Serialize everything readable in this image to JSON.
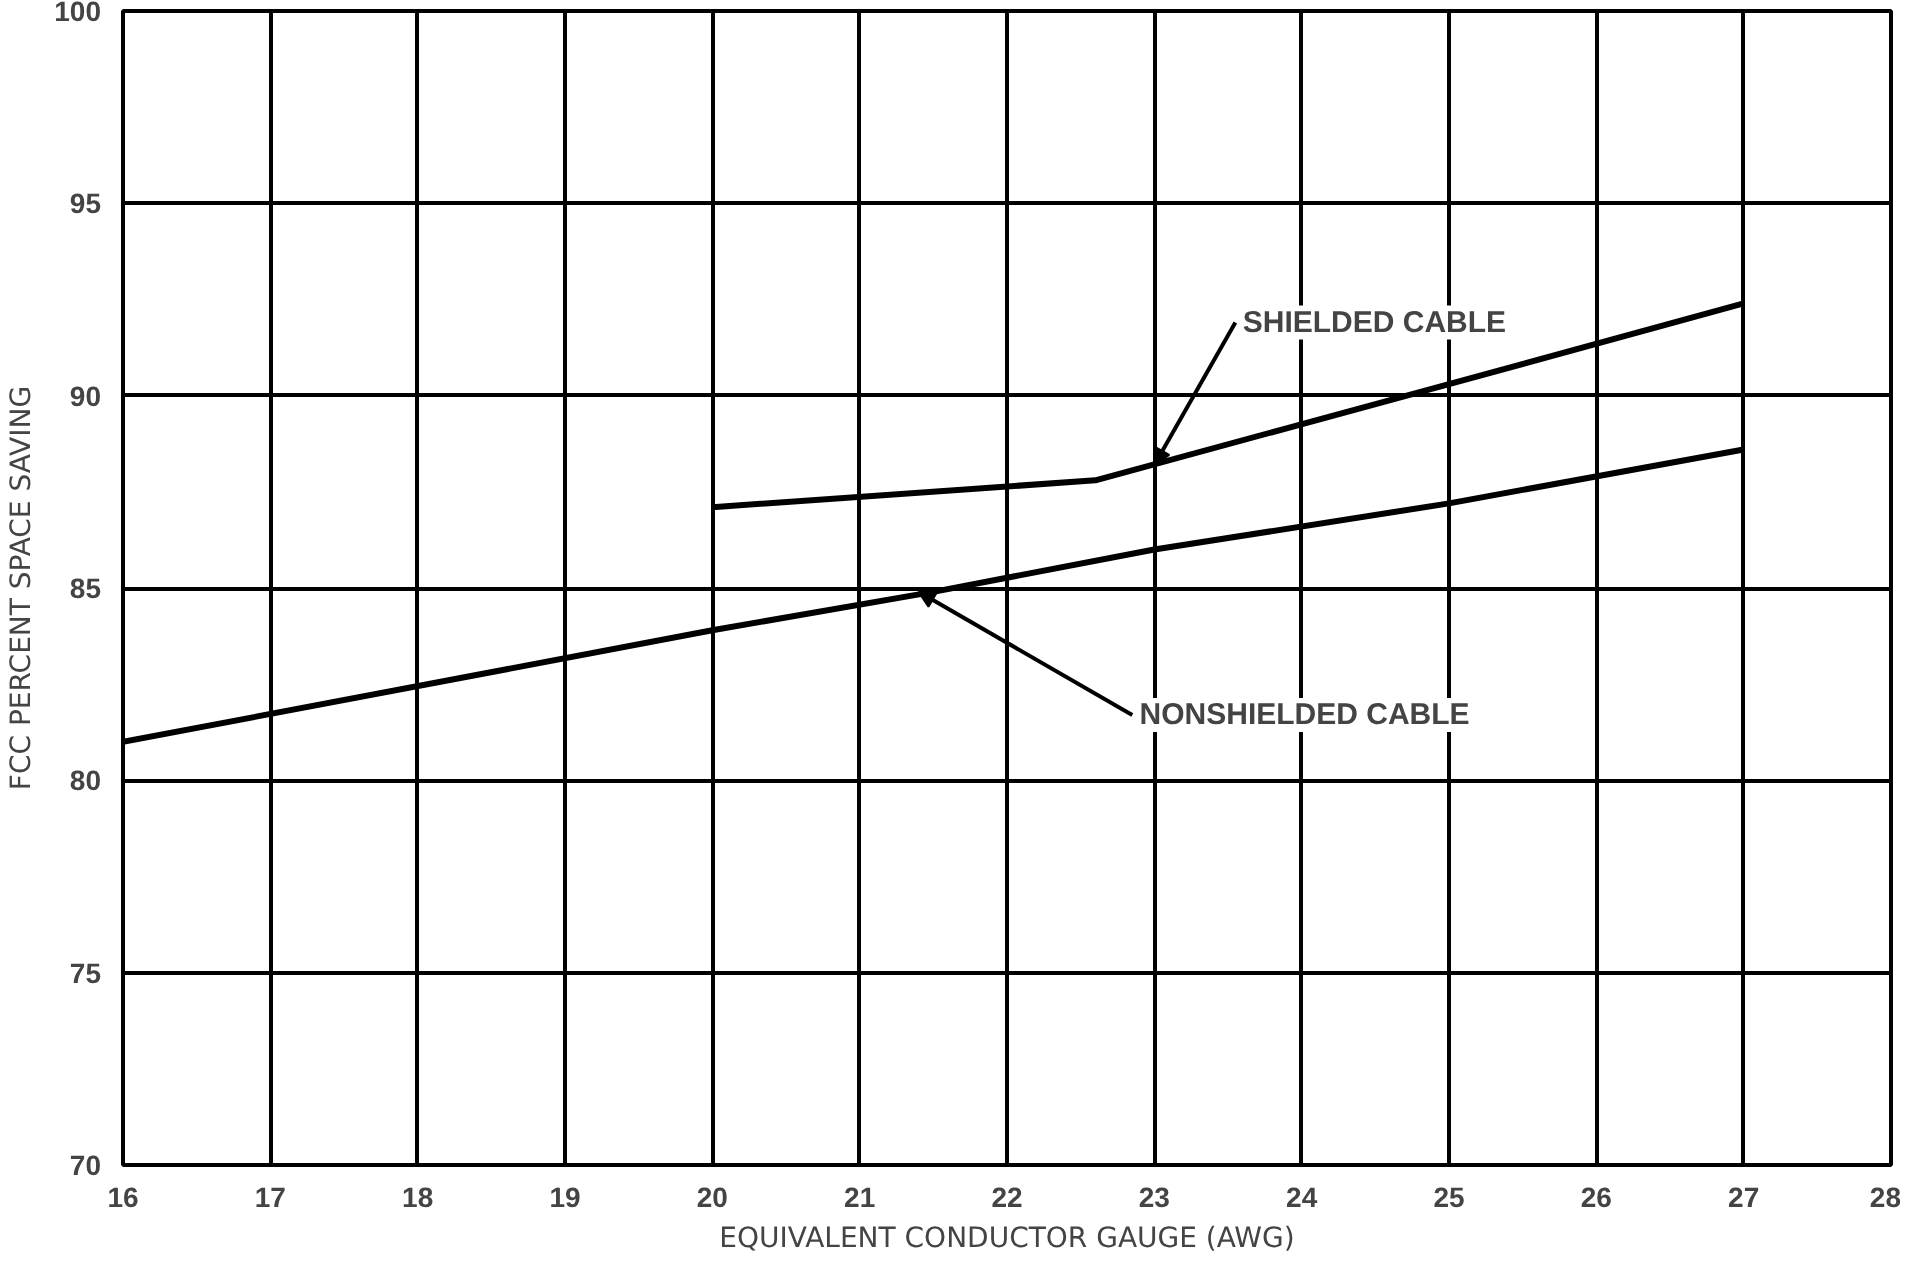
{
  "chart_data": {
    "type": "line",
    "xlabel": "EQUIVALENT CONDUCTOR GAUGE (AWG)",
    "ylabel": "FCC PERCENT SPACE SAVING",
    "series": [
      {
        "x": [
          20,
          22.6,
          25,
          27
        ],
        "values": [
          87.1,
          87.8,
          90.3,
          92.4
        ],
        "color": "#000000"
      },
      {
        "x": [
          16,
          20,
          21.5,
          23,
          25,
          27
        ],
        "values": [
          81,
          83.9,
          84.9,
          86.0,
          87.2,
          88.6
        ],
        "color": "#000000"
      }
    ],
    "annotations": [
      {
        "text": "SHIELDED CABLE",
        "x": 23,
        "y": 88.2
      },
      {
        "text": "NONSHIELDED CABLE",
        "x": 21.4,
        "y": 84.9
      }
    ],
    "xlim": [
      16,
      28
    ],
    "ylim": [
      70,
      100
    ],
    "xticks": [
      16,
      17,
      18,
      19,
      20,
      21,
      22,
      23,
      24,
      25,
      26,
      27,
      28
    ],
    "yticks": [
      70,
      75,
      80,
      85,
      90,
      95,
      100
    ],
    "grid": true,
    "marker": "none",
    "line_style": "solid"
  }
}
